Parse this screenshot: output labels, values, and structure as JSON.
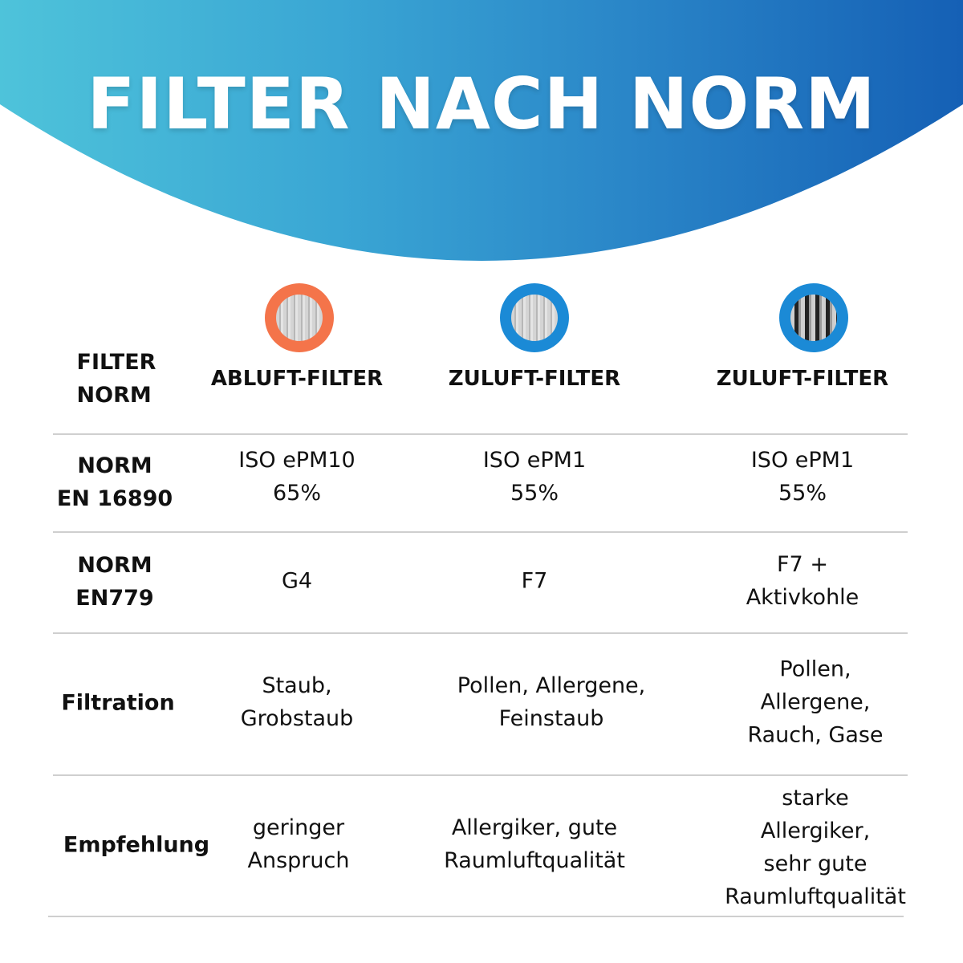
{
  "title": "FILTER NACH NORM",
  "colors": {
    "header_start": "#4ec3da",
    "header_end": "#1560b5",
    "orange_ring": "#f4744a",
    "blue_ring": "#1b8ad6"
  },
  "header_label": "FILTER\nNORM",
  "columns": [
    {
      "label": "ABLUFT-FILTER",
      "icon": "orange-ring-filter-icon"
    },
    {
      "label": "ZULUFT-FILTER",
      "icon": "blue-ring-filter-icon"
    },
    {
      "label": "ZULUFT-FILTER",
      "icon": "blue-ring-activated-carbon-filter-icon"
    }
  ],
  "rows": [
    {
      "label": "NORM\nEN 16890",
      "values": [
        "ISO ePM10\n65%",
        "ISO ePM1\n55%",
        "ISO ePM1\n55%"
      ]
    },
    {
      "label": "NORM\nEN779",
      "values": [
        "G4",
        "F7",
        "F7 + Aktivkohle"
      ]
    },
    {
      "label": "Filtration",
      "values": [
        "Staub,\nGrobstaub",
        "Pollen, Allergene,\nFeinstaub",
        "Pollen, Allergene,\nRauch, Gase"
      ]
    },
    {
      "label": "Empfehlung",
      "values": [
        "geringer\nAnspruch",
        "Allergiker, gute\nRaumluftqualität",
        "starke Allergiker,\nsehr gute\nRaumluftqualität"
      ]
    }
  ]
}
